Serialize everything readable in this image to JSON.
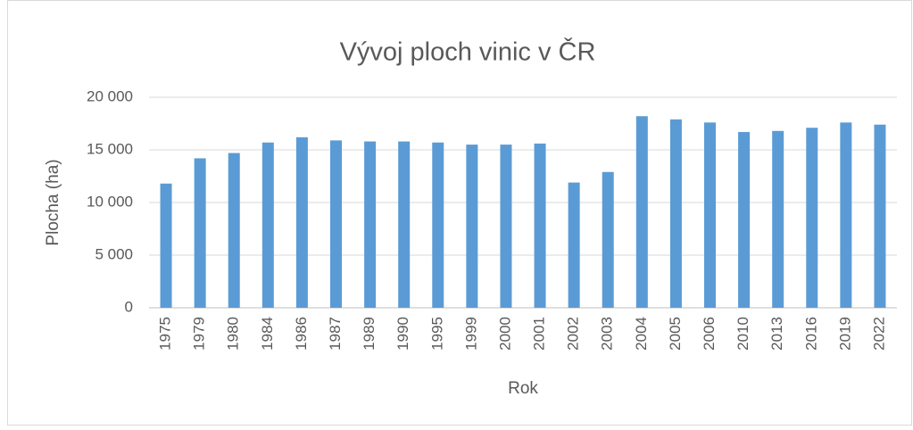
{
  "chart_data": {
    "type": "bar",
    "title": "Vývoj ploch vinic v ČR",
    "x_label": "Rok",
    "y_label": "Plocha (ha)",
    "categories": [
      "1975",
      "1979",
      "1980",
      "1984",
      "1986",
      "1987",
      "1989",
      "1990",
      "1995",
      "1999",
      "2000",
      "2001",
      "2002",
      "2003",
      "2004",
      "2005",
      "2006",
      "2010",
      "2013",
      "2016",
      "2019",
      "2022"
    ],
    "values": [
      11800,
      14200,
      14700,
      15700,
      16200,
      15900,
      15800,
      15800,
      15700,
      15500,
      15500,
      15600,
      11900,
      12900,
      18200,
      17900,
      17600,
      16700,
      16800,
      17100,
      17600,
      17400
    ],
    "color": "#5b9bd5",
    "ylim": [
      0,
      20000
    ],
    "yticks": [
      0,
      {
        "value": 5000,
        "label": "5 000"
      },
      {
        "value": 10000,
        "label": "10 000"
      },
      {
        "value": 15000,
        "label": "15 000"
      },
      {
        "value": 20000,
        "label": "20 000"
      }
    ],
    "grid": true
  }
}
